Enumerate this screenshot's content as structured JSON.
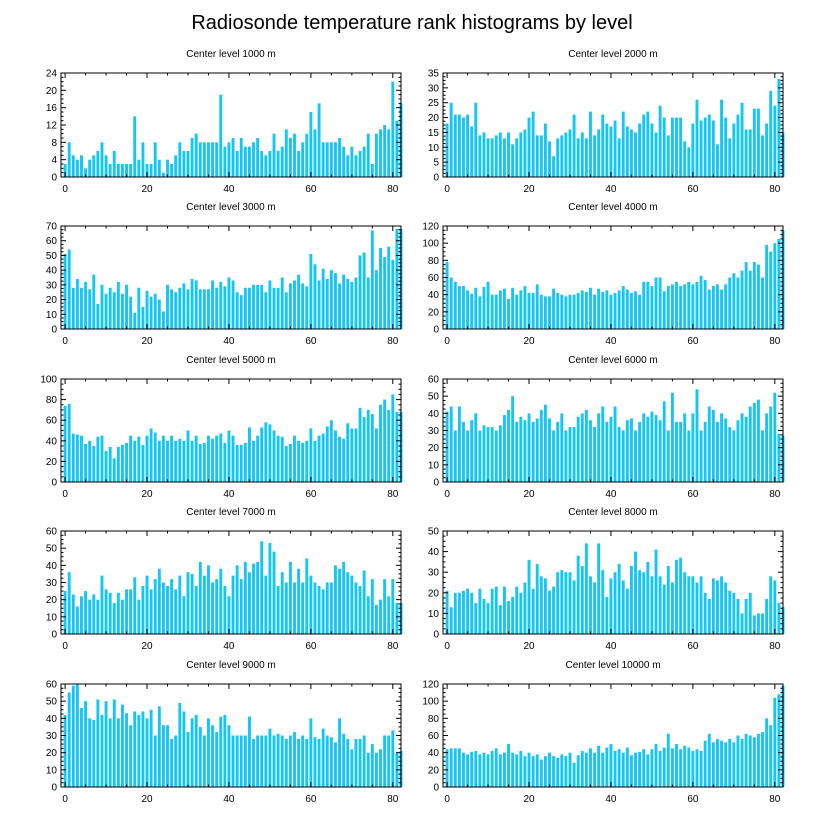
{
  "title": "Radiosonde temperature rank histograms by level",
  "bar_color": "#14c6f5",
  "chart_data": [
    {
      "type": "bar",
      "title": "Center level 1000 m",
      "xlim": [
        -1,
        82
      ],
      "ylim": [
        0,
        24
      ],
      "xticks": [
        0,
        20,
        40,
        60,
        80
      ],
      "yticks": [
        0,
        4,
        8,
        12,
        16,
        20,
        24
      ],
      "values": [
        3,
        8,
        5,
        4,
        5,
        2,
        4,
        5,
        6,
        8,
        5,
        3,
        6,
        3,
        3,
        3,
        3,
        14,
        4,
        8,
        3,
        3,
        8,
        4,
        1,
        4,
        3,
        5,
        8,
        6,
        6,
        9,
        10,
        8,
        8,
        8,
        8,
        8,
        19,
        7,
        8,
        9,
        6,
        9,
        7,
        7,
        8,
        9,
        6,
        5,
        6,
        10,
        6,
        7,
        11,
        9,
        10,
        6,
        8,
        10,
        15,
        11,
        17,
        8,
        8,
        8,
        8,
        9,
        7,
        5,
        7,
        5,
        6,
        7,
        10,
        3,
        10,
        11,
        12,
        11,
        22,
        13,
        17
      ]
    },
    {
      "type": "bar",
      "title": "Center level 2000 m",
      "xlim": [
        -1,
        82
      ],
      "ylim": [
        0,
        35
      ],
      "xticks": [
        0,
        20,
        40,
        60,
        80
      ],
      "yticks": [
        0,
        5,
        10,
        15,
        20,
        25,
        30,
        35
      ],
      "values": [
        18,
        25,
        21,
        21,
        20,
        21,
        17,
        25,
        14,
        15,
        13,
        13,
        14,
        15,
        13,
        15,
        11,
        13,
        15,
        16,
        20,
        22,
        14,
        14,
        18,
        12,
        7,
        13,
        14,
        15,
        16,
        21,
        13,
        15,
        13,
        22,
        14,
        16,
        21,
        18,
        17,
        19,
        13,
        22,
        17,
        16,
        15,
        18,
        21,
        22,
        18,
        15,
        24,
        20,
        14,
        20,
        20,
        20,
        12,
        10,
        18,
        26,
        19,
        20,
        21,
        19,
        11,
        26,
        20,
        13,
        18,
        21,
        25,
        16,
        16,
        23,
        23,
        14,
        18,
        29,
        24,
        33,
        15
      ]
    },
    {
      "type": "bar",
      "title": "Center level 3000 m",
      "xlim": [
        -1,
        82
      ],
      "ylim": [
        0,
        70
      ],
      "xticks": [
        0,
        20,
        40,
        60,
        80
      ],
      "yticks": [
        0,
        10,
        20,
        30,
        40,
        50,
        60,
        70
      ],
      "values": [
        51,
        54,
        28,
        34,
        28,
        32,
        27,
        37,
        17,
        30,
        24,
        28,
        25,
        32,
        24,
        30,
        22,
        11,
        28,
        15,
        26,
        22,
        24,
        20,
        12,
        30,
        27,
        25,
        28,
        31,
        27,
        34,
        33,
        27,
        27,
        27,
        33,
        28,
        32,
        29,
        35,
        33,
        25,
        23,
        28,
        28,
        30,
        30,
        30,
        25,
        33,
        28,
        28,
        35,
        25,
        31,
        33,
        37,
        31,
        29,
        51,
        44,
        33,
        41,
        34,
        40,
        38,
        31,
        37,
        34,
        32,
        35,
        50,
        52,
        35,
        67,
        40,
        55,
        49,
        56,
        47,
        68,
        68
      ]
    },
    {
      "type": "bar",
      "title": "Center level 4000 m",
      "xlim": [
        -1,
        82
      ],
      "ylim": [
        0,
        120
      ],
      "xticks": [
        0,
        20,
        40,
        60,
        80
      ],
      "yticks": [
        0,
        20,
        40,
        60,
        80,
        100,
        120
      ],
      "values": [
        78,
        60,
        55,
        50,
        50,
        45,
        41,
        48,
        38,
        49,
        55,
        40,
        40,
        45,
        47,
        35,
        48,
        40,
        45,
        50,
        42,
        42,
        52,
        40,
        38,
        38,
        47,
        42,
        40,
        38,
        40,
        40,
        42,
        45,
        43,
        48,
        40,
        47,
        43,
        45,
        40,
        42,
        45,
        50,
        46,
        42,
        44,
        40,
        55,
        55,
        50,
        60,
        60,
        44,
        50,
        52,
        55,
        50,
        52,
        55,
        52,
        55,
        62,
        57,
        46,
        50,
        52,
        46,
        52,
        60,
        65,
        60,
        68,
        78,
        68,
        78,
        75,
        60,
        98,
        90,
        100,
        105,
        115
      ]
    },
    {
      "type": "bar",
      "title": "Center level 5000 m",
      "xlim": [
        -1,
        82
      ],
      "ylim": [
        0,
        100
      ],
      "xticks": [
        0,
        20,
        40,
        60,
        80
      ],
      "yticks": [
        0,
        20,
        40,
        60,
        80,
        100
      ],
      "values": [
        74,
        76,
        47,
        46,
        45,
        37,
        40,
        35,
        44,
        45,
        30,
        34,
        23,
        34,
        36,
        38,
        45,
        40,
        44,
        36,
        45,
        52,
        48,
        40,
        45,
        40,
        45,
        40,
        42,
        40,
        50,
        40,
        45,
        37,
        38,
        45,
        42,
        45,
        47,
        38,
        50,
        45,
        36,
        36,
        38,
        53,
        40,
        45,
        53,
        58,
        56,
        50,
        45,
        44,
        35,
        37,
        45,
        40,
        38,
        40,
        52,
        40,
        45,
        47,
        54,
        60,
        50,
        44,
        42,
        57,
        52,
        52,
        72,
        63,
        70,
        66,
        52,
        75,
        80,
        70,
        85,
        68,
        68
      ]
    },
    {
      "type": "bar",
      "title": "Center level 6000 m",
      "xlim": [
        -1,
        82
      ],
      "ylim": [
        0,
        60
      ],
      "xticks": [
        0,
        20,
        40,
        60,
        80
      ],
      "yticks": [
        0,
        10,
        20,
        30,
        40,
        50,
        60
      ],
      "values": [
        41,
        44,
        30,
        44,
        35,
        30,
        36,
        40,
        30,
        33,
        32,
        32,
        30,
        33,
        39,
        42,
        50,
        35,
        38,
        36,
        40,
        35,
        37,
        42,
        45,
        37,
        30,
        35,
        40,
        30,
        32,
        32,
        38,
        40,
        42,
        36,
        32,
        40,
        44,
        35,
        38,
        44,
        32,
        30,
        36,
        37,
        30,
        35,
        40,
        38,
        41,
        39,
        36,
        47,
        30,
        52,
        35,
        35,
        40,
        30,
        40,
        54,
        30,
        35,
        44,
        42,
        35,
        40,
        37,
        32,
        30,
        36,
        40,
        38,
        44,
        46,
        48,
        30,
        40,
        44,
        52,
        28,
        27
      ]
    },
    {
      "type": "bar",
      "title": "Center level 7000 m",
      "xlim": [
        -1,
        82
      ],
      "ylim": [
        0,
        60
      ],
      "xticks": [
        0,
        20,
        40,
        60,
        80
      ],
      "yticks": [
        0,
        10,
        20,
        30,
        40,
        50,
        60
      ],
      "values": [
        25,
        36,
        23,
        16,
        22,
        25,
        20,
        23,
        20,
        34,
        26,
        24,
        18,
        24,
        20,
        26,
        26,
        33,
        20,
        28,
        34,
        26,
        32,
        38,
        30,
        28,
        32,
        26,
        34,
        22,
        36,
        35,
        28,
        42,
        34,
        40,
        30,
        32,
        38,
        28,
        22,
        34,
        40,
        32,
        42,
        36,
        41,
        42,
        54,
        34,
        53,
        48,
        28,
        36,
        30,
        42,
        30,
        38,
        30,
        44,
        34,
        30,
        28,
        26,
        30,
        30,
        40,
        38,
        42,
        36,
        34,
        30,
        28,
        37,
        22,
        32,
        17,
        20,
        32,
        22,
        32,
        18,
        18
      ]
    },
    {
      "type": "bar",
      "title": "Center level 8000 m",
      "xlim": [
        -1,
        82
      ],
      "ylim": [
        0,
        50
      ],
      "xticks": [
        0,
        20,
        40,
        60,
        80
      ],
      "yticks": [
        0,
        10,
        20,
        30,
        40,
        50
      ],
      "values": [
        21,
        13,
        20,
        20,
        21,
        22,
        20,
        15,
        22,
        17,
        15,
        22,
        23,
        14,
        23,
        16,
        18,
        23,
        20,
        25,
        36,
        22,
        34,
        28,
        27,
        21,
        23,
        30,
        31,
        30,
        30,
        26,
        38,
        33,
        44,
        28,
        25,
        44,
        31,
        18,
        27,
        30,
        34,
        26,
        22,
        33,
        40,
        31,
        30,
        35,
        28,
        41,
        28,
        24,
        33,
        25,
        36,
        37,
        30,
        28,
        28,
        25,
        28,
        20,
        17,
        27,
        26,
        28,
        25,
        21,
        20,
        17,
        10,
        17,
        20,
        9,
        10,
        10,
        17,
        28,
        26,
        15,
        13
      ]
    },
    {
      "type": "bar",
      "title": "Center level 9000 m",
      "xlim": [
        -1,
        82
      ],
      "ylim": [
        0,
        60
      ],
      "xticks": [
        0,
        20,
        40,
        60,
        80
      ],
      "yticks": [
        0,
        10,
        20,
        30,
        40,
        50,
        60
      ],
      "values": [
        42,
        55,
        59,
        60,
        46,
        50,
        40,
        39,
        51,
        42,
        50,
        40,
        51,
        40,
        48,
        43,
        36,
        44,
        42,
        44,
        40,
        45,
        30,
        47,
        36,
        36,
        28,
        30,
        49,
        44,
        32,
        40,
        42,
        35,
        30,
        40,
        36,
        32,
        41,
        42,
        36,
        30,
        30,
        30,
        30,
        41,
        28,
        30,
        30,
        30,
        34,
        30,
        31,
        30,
        28,
        30,
        32,
        28,
        30,
        28,
        40,
        29,
        28,
        34,
        30,
        29,
        26,
        40,
        31,
        28,
        22,
        28,
        28,
        30,
        20,
        25,
        20,
        22,
        30,
        30,
        33,
        20,
        21
      ]
    },
    {
      "type": "bar",
      "title": "Center level 10000 m",
      "xlim": [
        -1,
        82
      ],
      "ylim": [
        0,
        120
      ],
      "xticks": [
        0,
        20,
        40,
        60,
        80
      ],
      "yticks": [
        0,
        20,
        40,
        60,
        80,
        100,
        120
      ],
      "values": [
        44,
        45,
        45,
        45,
        40,
        38,
        41,
        42,
        38,
        40,
        38,
        42,
        45,
        38,
        40,
        50,
        40,
        38,
        42,
        36,
        40,
        36,
        38,
        32,
        36,
        40,
        36,
        34,
        38,
        36,
        40,
        28,
        37,
        42,
        40,
        45,
        40,
        48,
        40,
        46,
        50,
        42,
        44,
        40,
        46,
        37,
        40,
        41,
        44,
        38,
        44,
        50,
        42,
        46,
        62,
        45,
        50,
        44,
        48,
        46,
        42,
        44,
        42,
        54,
        62,
        52,
        56,
        54,
        52,
        56,
        52,
        60,
        56,
        62,
        60,
        58,
        62,
        64,
        80,
        72,
        104,
        108,
        118
      ]
    }
  ]
}
